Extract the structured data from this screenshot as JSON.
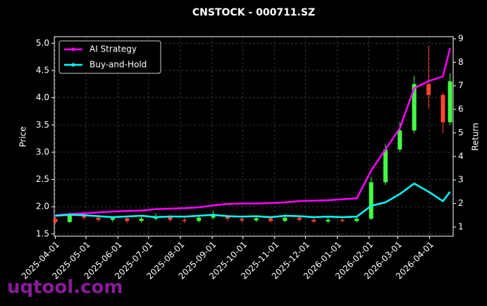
{
  "chart_data": {
    "type": "candlestick",
    "title": "CNSTOCK - 000711.SZ",
    "y_label": "Price",
    "y2_label": "Return",
    "watermark": "uqtool.com",
    "x": [
      "2025-04-01",
      "2025-04-15",
      "2025-04-29",
      "2025-05-13",
      "2025-05-27",
      "2025-06-10",
      "2025-06-24",
      "2025-07-08",
      "2025-07-22",
      "2025-08-05",
      "2025-08-19",
      "2025-09-02",
      "2025-09-16",
      "2025-09-30",
      "2025-10-14",
      "2025-10-28",
      "2025-11-11",
      "2025-11-25",
      "2025-12-09",
      "2025-12-23",
      "2026-01-06",
      "2026-01-20",
      "2026-02-03",
      "2026-02-17",
      "2026-03-03",
      "2026-03-17",
      "2026-03-31",
      "2026-04-14",
      "2026-04-21"
    ],
    "open": [
      1.78,
      1.72,
      1.85,
      1.8,
      1.76,
      1.79,
      1.74,
      1.78,
      1.82,
      1.76,
      1.74,
      1.8,
      1.84,
      1.78,
      1.75,
      1.79,
      1.74,
      1.8,
      1.76,
      1.73,
      1.76,
      1.74,
      1.78,
      2.45,
      3.05,
      3.4,
      4.25,
      4.05,
      3.55
    ],
    "high": [
      1.82,
      1.9,
      1.92,
      1.86,
      1.83,
      1.82,
      1.82,
      1.88,
      1.85,
      1.8,
      1.84,
      1.92,
      1.86,
      1.81,
      1.84,
      1.82,
      1.86,
      1.83,
      1.79,
      1.8,
      1.8,
      1.82,
      2.55,
      3.15,
      3.55,
      4.4,
      4.95,
      4.1,
      4.45
    ],
    "low": [
      1.68,
      1.7,
      1.76,
      1.72,
      1.72,
      1.7,
      1.71,
      1.75,
      1.72,
      1.7,
      1.71,
      1.77,
      1.74,
      1.71,
      1.72,
      1.7,
      1.72,
      1.72,
      1.7,
      1.7,
      1.71,
      1.71,
      1.76,
      2.4,
      3.0,
      3.35,
      3.8,
      3.35,
      3.5
    ],
    "close": [
      1.72,
      1.85,
      1.8,
      1.76,
      1.79,
      1.74,
      1.78,
      1.82,
      1.76,
      1.74,
      1.8,
      1.84,
      1.78,
      1.75,
      1.79,
      1.74,
      1.8,
      1.76,
      1.73,
      1.76,
      1.74,
      1.78,
      2.45,
      3.05,
      3.4,
      4.25,
      4.05,
      3.55,
      4.3
    ],
    "up_color": "#44ff44",
    "down_color": "#ff4433",
    "series": [
      {
        "name": "AI Strategy",
        "color": "#ff00ff",
        "axis": "y2",
        "values": [
          1.5,
          1.55,
          1.58,
          1.62,
          1.66,
          1.68,
          1.7,
          1.76,
          1.78,
          1.8,
          1.84,
          1.92,
          1.98,
          2.0,
          2.0,
          2.02,
          2.05,
          2.1,
          2.12,
          2.14,
          2.18,
          2.22,
          3.4,
          4.3,
          5.2,
          6.9,
          7.2,
          7.4,
          8.6
        ]
      },
      {
        "name": "Buy-and-Hold",
        "color": "#00ffff",
        "axis": "y2",
        "values": [
          1.48,
          1.52,
          1.5,
          1.46,
          1.42,
          1.45,
          1.48,
          1.42,
          1.45,
          1.44,
          1.48,
          1.52,
          1.46,
          1.44,
          1.46,
          1.42,
          1.48,
          1.46,
          1.42,
          1.44,
          1.42,
          1.44,
          1.9,
          2.05,
          2.4,
          2.85,
          2.5,
          2.1,
          2.5
        ]
      }
    ],
    "xlim": [
      "2025-03-31",
      "2026-04-24"
    ],
    "xticks": [
      "2025-04-01",
      "2025-05-01",
      "2025-06-01",
      "2025-07-01",
      "2025-08-01",
      "2025-09-01",
      "2025-10-01",
      "2025-11-01",
      "2025-12-01",
      "2026-01-01",
      "2026-02-01",
      "2026-03-01",
      "2026-04-01"
    ],
    "ylim": [
      1.46,
      5.12
    ],
    "yticks": [
      1.5,
      {
        "value": 2,
        "label": "2.0"
      },
      2.5,
      {
        "value": 3,
        "label": "3.0"
      },
      3.5,
      {
        "value": 4,
        "label": "4.0"
      },
      4.5,
      {
        "value": 5,
        "label": "5.0"
      }
    ],
    "y2lim": [
      0.61,
      9.09
    ],
    "y2ticks": [
      1,
      2,
      3,
      4,
      5,
      6,
      7,
      8,
      9
    ],
    "grid": true,
    "legend": "upper left"
  }
}
